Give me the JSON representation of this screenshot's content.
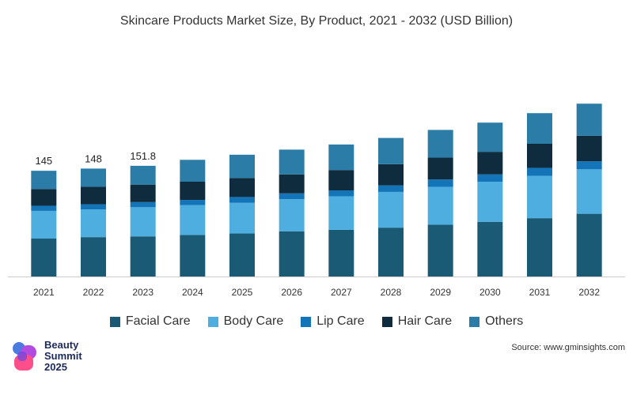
{
  "chart_data": {
    "type": "bar",
    "stacked": true,
    "title": "Skincare Products Market Size, By Product, 2021 - 2032 (USD Billion)",
    "xlabel": "",
    "ylabel": "",
    "categories": [
      "2021",
      "2022",
      "2023",
      "2024",
      "2025",
      "2026",
      "2027",
      "2028",
      "2029",
      "2030",
      "2031",
      "2032"
    ],
    "ylim": [
      0,
      260
    ],
    "grid": false,
    "legend_position": "bottom",
    "series": [
      {
        "name": "Facial Care",
        "color": "#1b5a74",
        "values": [
          52,
          54,
          55,
          57,
          59,
          62,
          64,
          67,
          71,
          75,
          80,
          86
        ]
      },
      {
        "name": "Body Care",
        "color": "#4faee0",
        "values": [
          38,
          38,
          40,
          41,
          42,
          44,
          46,
          49,
          52,
          55,
          58,
          61
        ]
      },
      {
        "name": "Lip Care",
        "color": "#1474b8",
        "values": [
          7,
          7,
          7,
          7,
          8,
          8,
          8,
          9,
          10,
          10,
          11,
          11
        ]
      },
      {
        "name": "Hair Care",
        "color": "#0e2c3e",
        "values": [
          23,
          24,
          24,
          25,
          26,
          26,
          28,
          29,
          30,
          31,
          33,
          35
        ]
      },
      {
        "name": "Others",
        "color": "#2b7ca6",
        "values": [
          25,
          25,
          25.8,
          30,
          32,
          34,
          35,
          36,
          38,
          40,
          42,
          44
        ]
      }
    ],
    "data_labels": [
      {
        "category": "2021",
        "text": "145"
      },
      {
        "category": "2022",
        "text": "148"
      },
      {
        "category": "2023",
        "text": "151.8"
      }
    ]
  },
  "source": "Source: www.gminsights.com",
  "logo": {
    "line1": "Beauty",
    "line2": "Summit",
    "line3": "2025"
  }
}
